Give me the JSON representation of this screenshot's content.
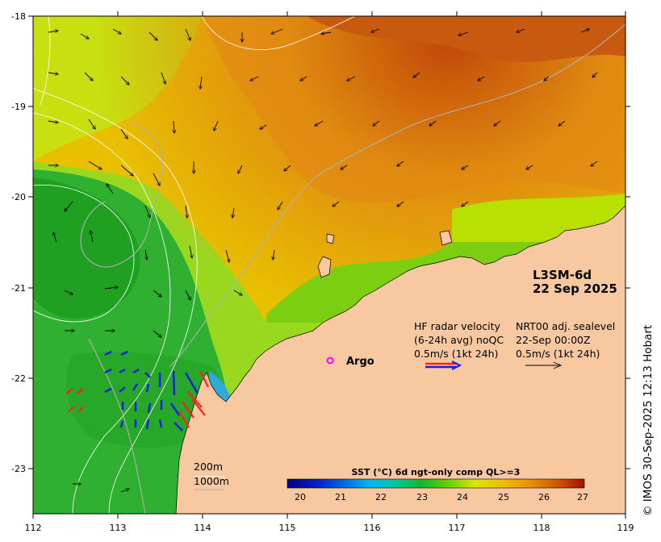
{
  "map": {
    "axis": {
      "x_ticks": [
        "112",
        "113",
        "114",
        "115",
        "116",
        "117",
        "118",
        "119"
      ],
      "y_ticks": [
        "-18",
        "-19",
        "-20",
        "-21",
        "-22",
        "-23"
      ]
    },
    "title": {
      "line1": "L3SM-6d",
      "line2": "22 Sep 2025"
    },
    "hf_legend": {
      "line1": "HF radar velocity",
      "line2": "(6-24h avg) noQC",
      "line3": "0.5m/s (1kt 24h)"
    },
    "sealevel_legend": {
      "line1": "NRT00 adj. sealevel",
      "line2": "22-Sep 00:00Z",
      "line3": "0.5m/s (1kt 24h)"
    },
    "argo_label": "Argo",
    "isobaths": {
      "line1": "200m",
      "line2": "1000m"
    },
    "colorbar": {
      "title": "SST (°C) 6d ngt-only comp QL>=3",
      "ticks": [
        "20",
        "21",
        "22",
        "23",
        "24",
        "25",
        "26",
        "27"
      ]
    },
    "credit": "© IMOS 30-Sep-2025 12:13 Hobart",
    "colors": {
      "land": "#f8c8a0",
      "argo": "#ff00ff",
      "radar_red": "#ff2020",
      "radar_blue": "#1020e0",
      "sst_warm": "#c85a10",
      "sst_cool": "#30b030"
    }
  }
}
